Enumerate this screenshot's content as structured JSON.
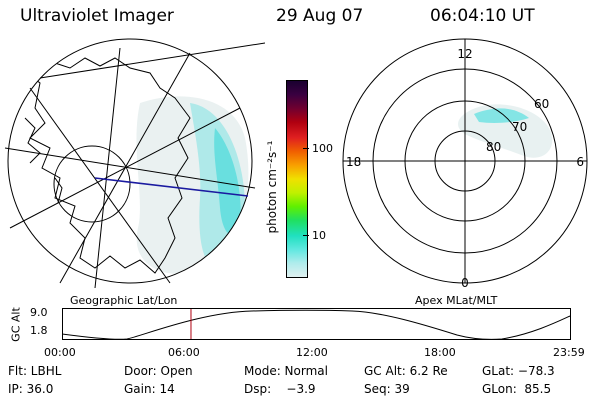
{
  "header": {
    "instrument": "Ultraviolet Imager",
    "date": "29 Aug 07",
    "time": "06:04:10 UT"
  },
  "maps": {
    "left_label": "Geographic Lat/Lon",
    "right_label": "Apex MLat/MLT",
    "polar_mlt_labels": {
      "top": "12",
      "left": "18",
      "right": "6",
      "bottom": "0"
    },
    "polar_lat_labels": [
      "60",
      "70",
      "80"
    ]
  },
  "colorbar": {
    "unit_label": "photon cm⁻²s⁻¹",
    "ticks": [
      "100",
      "10"
    ],
    "colors": [
      "#1a0030",
      "#3a0040",
      "#700030",
      "#b00010",
      "#e02020",
      "#f06000",
      "#f8a000",
      "#f0e000",
      "#c0f000",
      "#60f000",
      "#20e060",
      "#20e0c0",
      "#60e8e0",
      "#b0ecec",
      "#e0f0f0"
    ]
  },
  "altitude_plot": {
    "axis_label": "GC Alt",
    "y_ticks": [
      "9.0",
      "1.8"
    ],
    "x_ticks": [
      "00:00",
      "06:00",
      "12:00",
      "18:00",
      "23:59"
    ],
    "marker_time_hours": 6.07
  },
  "status": {
    "flt": "Flt: LBHL",
    "door": "Door: Open",
    "mode": "Mode: Normal",
    "gc_alt": "GC Alt: 6.2 Re",
    "glat": "GLat: −78.3",
    "ip": "IP: 36.0",
    "gain": "Gain: 14",
    "dsp": "Dsp:    −3.9",
    "seq": "Seq: 39",
    "glon": "GLon:  85.5"
  }
}
